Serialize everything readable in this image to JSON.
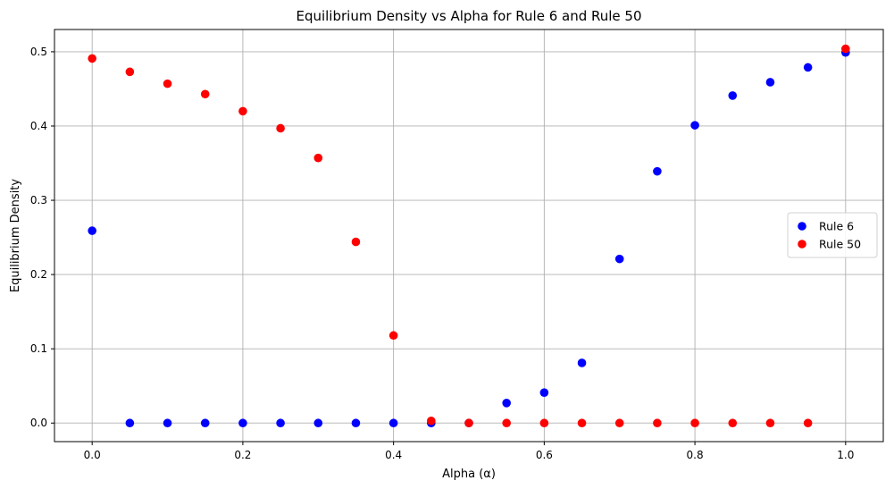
{
  "chart_data": {
    "type": "scatter",
    "title": "Equilibrium Density vs Alpha for Rule 6 and Rule 50",
    "xlabel": "Alpha (α)",
    "ylabel": "Equilibrium Density",
    "xlim": [
      -0.05,
      1.05
    ],
    "ylim": [
      -0.025,
      0.53
    ],
    "xticks": [
      0.0,
      0.2,
      0.4,
      0.6,
      0.8,
      1.0
    ],
    "xtick_labels": [
      "0.0",
      "0.2",
      "0.4",
      "0.6",
      "0.8",
      "1.0"
    ],
    "yticks": [
      0.0,
      0.1,
      0.2,
      0.3,
      0.4,
      0.5
    ],
    "ytick_labels": [
      "0.0",
      "0.1",
      "0.2",
      "0.3",
      "0.4",
      "0.5"
    ],
    "grid": true,
    "legend_position": "center-right",
    "x": [
      0.0,
      0.05,
      0.1,
      0.15,
      0.2,
      0.25,
      0.3,
      0.35,
      0.4,
      0.45,
      0.5,
      0.55,
      0.6,
      0.65,
      0.7,
      0.75,
      0.8,
      0.85,
      0.9,
      0.95,
      1.0
    ],
    "series": [
      {
        "name": "Rule 6",
        "color": "#0000ff",
        "values": [
          0.259,
          0.0,
          0.0,
          0.0,
          0.0,
          0.0,
          0.0,
          0.0,
          0.0,
          0.0,
          0.0,
          0.027,
          0.041,
          0.081,
          0.221,
          0.339,
          0.401,
          0.441,
          0.459,
          0.479,
          0.499
        ]
      },
      {
        "name": "Rule 50",
        "color": "#ff0000",
        "values": [
          0.491,
          0.473,
          0.457,
          0.443,
          0.42,
          0.397,
          0.357,
          0.244,
          0.118,
          0.003,
          0.0,
          0.0,
          0.0,
          0.0,
          0.0,
          0.0,
          0.0,
          0.0,
          0.0,
          0.0,
          0.504
        ]
      }
    ]
  }
}
